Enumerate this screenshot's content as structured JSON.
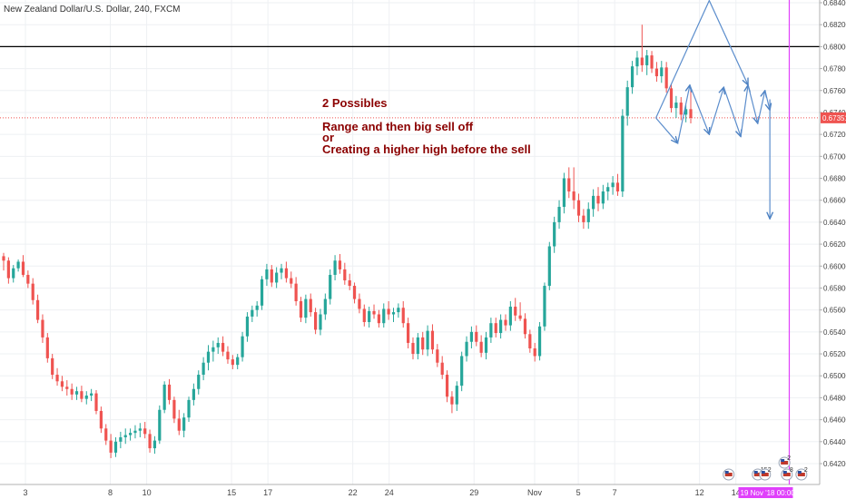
{
  "chart_data": {
    "type": "candlestick",
    "title": "New Zealand Dollar/U.S. Dollar, 240, FXCM",
    "y_range": [
      0.6408,
      0.6843
    ],
    "y_ticks": [
      "0.68400",
      "0.68200",
      "0.68000",
      "0.67800",
      "0.67600",
      "0.67400",
      "0.67200",
      "0.67000",
      "0.66800",
      "0.66600",
      "0.66400",
      "0.66200",
      "0.66000",
      "0.65800",
      "0.65600",
      "0.65400",
      "0.65200",
      "0.65000",
      "0.64800",
      "0.64600",
      "0.64400",
      "0.64200"
    ],
    "x_range": [
      0,
      28
    ],
    "x_ticks": [
      {
        "label": "3",
        "t": 1.0
      },
      {
        "label": "8",
        "t": 4.5
      },
      {
        "label": "10",
        "t": 6.0
      },
      {
        "label": "15",
        "t": 9.5
      },
      {
        "label": "17",
        "t": 11.0
      },
      {
        "label": "22",
        "t": 14.5
      },
      {
        "label": "24",
        "t": 16.0
      },
      {
        "label": "29",
        "t": 19.5
      },
      {
        "label": "Nov",
        "t": 22.0
      },
      {
        "label": "5",
        "t": 23.8
      },
      {
        "label": "7",
        "t": 25.3
      },
      {
        "label": "12",
        "t": 28.8
      },
      {
        "label": "14",
        "t": 30.3
      }
    ],
    "up_color": "#26a69a",
    "down_color": "#ef5350",
    "resistance_level": 0.68,
    "current_price": "0.67351",
    "current_price_value": 0.67351,
    "time_badge": "19 Nov '18 00:00",
    "time_badge_t": 32.5,
    "annotation": {
      "lines": [
        "2 Possibles",
        "",
        "Range and then big sell off",
        "or",
        "Creating a higher high before the sell"
      ],
      "color": "#8b0000"
    },
    "scenario_paths": [
      [
        [
          27.0,
          0.6735
        ],
        [
          29.2,
          0.6842
        ],
        [
          30.8,
          0.6765
        ]
      ],
      [
        [
          27.0,
          0.6735
        ],
        [
          27.9,
          0.6712
        ]
      ],
      [
        [
          27.9,
          0.6712
        ],
        [
          28.4,
          0.6765
        ]
      ],
      [
        [
          28.4,
          0.6765
        ],
        [
          29.2,
          0.672
        ]
      ],
      [
        [
          29.2,
          0.672
        ],
        [
          29.8,
          0.6763
        ]
      ],
      [
        [
          29.8,
          0.6763
        ],
        [
          30.5,
          0.6718
        ]
      ],
      [
        [
          30.5,
          0.6718
        ],
        [
          30.8,
          0.6765
        ]
      ],
      [
        [
          30.8,
          0.6765
        ],
        [
          31.2,
          0.673
        ]
      ],
      [
        [
          31.2,
          0.673
        ],
        [
          31.5,
          0.676
        ]
      ],
      [
        [
          31.5,
          0.676
        ],
        [
          31.7,
          0.6742
        ]
      ]
    ],
    "drop_arrow": [
      [
        31.7,
        0.6752
      ],
      [
        31.7,
        0.6643
      ]
    ],
    "event_badges": [
      {
        "t": 30.0,
        "label": ""
      },
      {
        "t": 31.2,
        "label": "15"
      },
      {
        "t": 31.5,
        "label": "2"
      },
      {
        "t": 32.4,
        "label": "8"
      },
      {
        "t": 32.3,
        "label": "2",
        "upper": true
      },
      {
        "t": 33.0,
        "label": "2"
      }
    ],
    "candles": [
      {
        "o": 0.6609,
        "h": 0.6612,
        "l": 0.6596,
        "c": 0.6605
      },
      {
        "o": 0.6605,
        "h": 0.6608,
        "l": 0.6584,
        "c": 0.6589
      },
      {
        "o": 0.6589,
        "h": 0.6601,
        "l": 0.6585,
        "c": 0.6598
      },
      {
        "o": 0.6598,
        "h": 0.6606,
        "l": 0.6595,
        "c": 0.6604
      },
      {
        "o": 0.6604,
        "h": 0.661,
        "l": 0.659,
        "c": 0.6592
      },
      {
        "o": 0.6592,
        "h": 0.6596,
        "l": 0.658,
        "c": 0.6584
      },
      {
        "o": 0.6584,
        "h": 0.6589,
        "l": 0.6565,
        "c": 0.6569
      },
      {
        "o": 0.6569,
        "h": 0.6574,
        "l": 0.6548,
        "c": 0.6551
      },
      {
        "o": 0.6551,
        "h": 0.6556,
        "l": 0.653,
        "c": 0.6535
      },
      {
        "o": 0.6535,
        "h": 0.6539,
        "l": 0.6512,
        "c": 0.6516
      },
      {
        "o": 0.6516,
        "h": 0.652,
        "l": 0.6497,
        "c": 0.6501
      },
      {
        "o": 0.6501,
        "h": 0.6507,
        "l": 0.6491,
        "c": 0.6495
      },
      {
        "o": 0.6495,
        "h": 0.65,
        "l": 0.6486,
        "c": 0.649
      },
      {
        "o": 0.649,
        "h": 0.6496,
        "l": 0.6482,
        "c": 0.6488
      },
      {
        "o": 0.6488,
        "h": 0.6493,
        "l": 0.6478,
        "c": 0.6483
      },
      {
        "o": 0.6483,
        "h": 0.649,
        "l": 0.6478,
        "c": 0.6486
      },
      {
        "o": 0.6486,
        "h": 0.6491,
        "l": 0.6476,
        "c": 0.6479
      },
      {
        "o": 0.6479,
        "h": 0.6486,
        "l": 0.6474,
        "c": 0.6482
      },
      {
        "o": 0.6482,
        "h": 0.6488,
        "l": 0.6477,
        "c": 0.6484
      },
      {
        "o": 0.6484,
        "h": 0.6487,
        "l": 0.6465,
        "c": 0.6468
      },
      {
        "o": 0.6468,
        "h": 0.6472,
        "l": 0.6448,
        "c": 0.6452
      },
      {
        "o": 0.6452,
        "h": 0.6456,
        "l": 0.6437,
        "c": 0.6441
      },
      {
        "o": 0.6441,
        "h": 0.6447,
        "l": 0.6425,
        "c": 0.643
      },
      {
        "o": 0.643,
        "h": 0.6444,
        "l": 0.6426,
        "c": 0.644
      },
      {
        "o": 0.644,
        "h": 0.6449,
        "l": 0.6434,
        "c": 0.6444
      },
      {
        "o": 0.6444,
        "h": 0.6452,
        "l": 0.6438,
        "c": 0.6446
      },
      {
        "o": 0.6446,
        "h": 0.6452,
        "l": 0.6441,
        "c": 0.6448
      },
      {
        "o": 0.6448,
        "h": 0.6455,
        "l": 0.6443,
        "c": 0.645
      },
      {
        "o": 0.645,
        "h": 0.6457,
        "l": 0.6444,
        "c": 0.6452
      },
      {
        "o": 0.6452,
        "h": 0.6458,
        "l": 0.6443,
        "c": 0.6447
      },
      {
        "o": 0.6447,
        "h": 0.6451,
        "l": 0.643,
        "c": 0.6434
      },
      {
        "o": 0.6434,
        "h": 0.6445,
        "l": 0.6429,
        "c": 0.6441
      },
      {
        "o": 0.6441,
        "h": 0.6473,
        "l": 0.6438,
        "c": 0.6469
      },
      {
        "o": 0.6469,
        "h": 0.6495,
        "l": 0.6466,
        "c": 0.6492
      },
      {
        "o": 0.6492,
        "h": 0.6497,
        "l": 0.6474,
        "c": 0.6478
      },
      {
        "o": 0.6478,
        "h": 0.6481,
        "l": 0.6457,
        "c": 0.6461
      },
      {
        "o": 0.6461,
        "h": 0.6469,
        "l": 0.6446,
        "c": 0.645
      },
      {
        "o": 0.645,
        "h": 0.6466,
        "l": 0.6444,
        "c": 0.6462
      },
      {
        "o": 0.6462,
        "h": 0.6481,
        "l": 0.6458,
        "c": 0.6478
      },
      {
        "o": 0.6478,
        "h": 0.6493,
        "l": 0.6473,
        "c": 0.6488
      },
      {
        "o": 0.6488,
        "h": 0.6505,
        "l": 0.6483,
        "c": 0.6501
      },
      {
        "o": 0.6501,
        "h": 0.6517,
        "l": 0.6496,
        "c": 0.6512
      },
      {
        "o": 0.6512,
        "h": 0.6528,
        "l": 0.6505,
        "c": 0.6522
      },
      {
        "o": 0.6522,
        "h": 0.6532,
        "l": 0.6513,
        "c": 0.6526
      },
      {
        "o": 0.6526,
        "h": 0.6535,
        "l": 0.652,
        "c": 0.653
      },
      {
        "o": 0.653,
        "h": 0.6536,
        "l": 0.6518,
        "c": 0.6522
      },
      {
        "o": 0.6522,
        "h": 0.6527,
        "l": 0.6511,
        "c": 0.6515
      },
      {
        "o": 0.6515,
        "h": 0.6519,
        "l": 0.6506,
        "c": 0.651
      },
      {
        "o": 0.651,
        "h": 0.652,
        "l": 0.6506,
        "c": 0.6517
      },
      {
        "o": 0.6517,
        "h": 0.654,
        "l": 0.6513,
        "c": 0.6536
      },
      {
        "o": 0.6536,
        "h": 0.6558,
        "l": 0.6531,
        "c": 0.6554
      },
      {
        "o": 0.6554,
        "h": 0.6564,
        "l": 0.6549,
        "c": 0.656
      },
      {
        "o": 0.656,
        "h": 0.6568,
        "l": 0.6554,
        "c": 0.6564
      },
      {
        "o": 0.6564,
        "h": 0.6591,
        "l": 0.656,
        "c": 0.6588
      },
      {
        "o": 0.6588,
        "h": 0.6602,
        "l": 0.6582,
        "c": 0.6597
      },
      {
        "o": 0.6597,
        "h": 0.6601,
        "l": 0.6581,
        "c": 0.6585
      },
      {
        "o": 0.6585,
        "h": 0.6599,
        "l": 0.658,
        "c": 0.6594
      },
      {
        "o": 0.6594,
        "h": 0.6602,
        "l": 0.6588,
        "c": 0.6598
      },
      {
        "o": 0.6598,
        "h": 0.6604,
        "l": 0.6585,
        "c": 0.6589
      },
      {
        "o": 0.6589,
        "h": 0.6595,
        "l": 0.658,
        "c": 0.6584
      },
      {
        "o": 0.6584,
        "h": 0.659,
        "l": 0.6564,
        "c": 0.6568
      },
      {
        "o": 0.6568,
        "h": 0.6572,
        "l": 0.6549,
        "c": 0.6553
      },
      {
        "o": 0.6553,
        "h": 0.6574,
        "l": 0.6548,
        "c": 0.657
      },
      {
        "o": 0.657,
        "h": 0.6575,
        "l": 0.6554,
        "c": 0.6558
      },
      {
        "o": 0.6558,
        "h": 0.6562,
        "l": 0.6538,
        "c": 0.6542
      },
      {
        "o": 0.6542,
        "h": 0.6561,
        "l": 0.6537,
        "c": 0.6556
      },
      {
        "o": 0.6556,
        "h": 0.6575,
        "l": 0.6551,
        "c": 0.657
      },
      {
        "o": 0.657,
        "h": 0.6597,
        "l": 0.6565,
        "c": 0.6592
      },
      {
        "o": 0.6592,
        "h": 0.661,
        "l": 0.6587,
        "c": 0.6605
      },
      {
        "o": 0.6605,
        "h": 0.6611,
        "l": 0.6593,
        "c": 0.6597
      },
      {
        "o": 0.6597,
        "h": 0.6603,
        "l": 0.6583,
        "c": 0.6587
      },
      {
        "o": 0.6587,
        "h": 0.6593,
        "l": 0.6578,
        "c": 0.6582
      },
      {
        "o": 0.6582,
        "h": 0.6585,
        "l": 0.6566,
        "c": 0.657
      },
      {
        "o": 0.657,
        "h": 0.6575,
        "l": 0.6557,
        "c": 0.6561
      },
      {
        "o": 0.6561,
        "h": 0.6565,
        "l": 0.6545,
        "c": 0.6549
      },
      {
        "o": 0.6549,
        "h": 0.6563,
        "l": 0.6544,
        "c": 0.6559
      },
      {
        "o": 0.6559,
        "h": 0.6565,
        "l": 0.6552,
        "c": 0.6556
      },
      {
        "o": 0.6556,
        "h": 0.656,
        "l": 0.6544,
        "c": 0.6548
      },
      {
        "o": 0.6548,
        "h": 0.6566,
        "l": 0.6544,
        "c": 0.6561
      },
      {
        "o": 0.6561,
        "h": 0.6568,
        "l": 0.6551,
        "c": 0.6556
      },
      {
        "o": 0.6556,
        "h": 0.6562,
        "l": 0.6549,
        "c": 0.6558
      },
      {
        "o": 0.6558,
        "h": 0.6566,
        "l": 0.6553,
        "c": 0.6562
      },
      {
        "o": 0.6562,
        "h": 0.6568,
        "l": 0.6544,
        "c": 0.6548
      },
      {
        "o": 0.6548,
        "h": 0.6553,
        "l": 0.6525,
        "c": 0.653
      },
      {
        "o": 0.653,
        "h": 0.6535,
        "l": 0.6515,
        "c": 0.652
      },
      {
        "o": 0.652,
        "h": 0.6539,
        "l": 0.6515,
        "c": 0.6535
      },
      {
        "o": 0.6535,
        "h": 0.654,
        "l": 0.6519,
        "c": 0.6524
      },
      {
        "o": 0.6524,
        "h": 0.6546,
        "l": 0.6518,
        "c": 0.6541
      },
      {
        "o": 0.6541,
        "h": 0.6547,
        "l": 0.652,
        "c": 0.6524
      },
      {
        "o": 0.6524,
        "h": 0.6529,
        "l": 0.6508,
        "c": 0.6512
      },
      {
        "o": 0.6512,
        "h": 0.6518,
        "l": 0.6497,
        "c": 0.6501
      },
      {
        "o": 0.6501,
        "h": 0.6505,
        "l": 0.6476,
        "c": 0.6481
      },
      {
        "o": 0.6481,
        "h": 0.6486,
        "l": 0.6466,
        "c": 0.6474
      },
      {
        "o": 0.6474,
        "h": 0.6495,
        "l": 0.6468,
        "c": 0.6491
      },
      {
        "o": 0.6491,
        "h": 0.6522,
        "l": 0.6486,
        "c": 0.6518
      },
      {
        "o": 0.6518,
        "h": 0.6536,
        "l": 0.6513,
        "c": 0.6531
      },
      {
        "o": 0.6531,
        "h": 0.6545,
        "l": 0.6525,
        "c": 0.654
      },
      {
        "o": 0.654,
        "h": 0.6546,
        "l": 0.6527,
        "c": 0.6531
      },
      {
        "o": 0.6531,
        "h": 0.6537,
        "l": 0.6517,
        "c": 0.6521
      },
      {
        "o": 0.6521,
        "h": 0.654,
        "l": 0.6515,
        "c": 0.6535
      },
      {
        "o": 0.6535,
        "h": 0.6553,
        "l": 0.653,
        "c": 0.6548
      },
      {
        "o": 0.6548,
        "h": 0.6553,
        "l": 0.6535,
        "c": 0.6539
      },
      {
        "o": 0.6539,
        "h": 0.6556,
        "l": 0.6534,
        "c": 0.6551
      },
      {
        "o": 0.6551,
        "h": 0.6556,
        "l": 0.6541,
        "c": 0.6546
      },
      {
        "o": 0.6546,
        "h": 0.6568,
        "l": 0.6541,
        "c": 0.6563
      },
      {
        "o": 0.6563,
        "h": 0.6571,
        "l": 0.655,
        "c": 0.6555
      },
      {
        "o": 0.6555,
        "h": 0.6567,
        "l": 0.655,
        "c": 0.6552
      },
      {
        "o": 0.6552,
        "h": 0.6557,
        "l": 0.6534,
        "c": 0.6538
      },
      {
        "o": 0.6538,
        "h": 0.6542,
        "l": 0.6521,
        "c": 0.6525
      },
      {
        "o": 0.6525,
        "h": 0.653,
        "l": 0.6513,
        "c": 0.6518
      },
      {
        "o": 0.6518,
        "h": 0.6549,
        "l": 0.6514,
        "c": 0.6545
      },
      {
        "o": 0.6545,
        "h": 0.6585,
        "l": 0.6541,
        "c": 0.6582
      },
      {
        "o": 0.6582,
        "h": 0.6622,
        "l": 0.6578,
        "c": 0.6618
      },
      {
        "o": 0.6618,
        "h": 0.6645,
        "l": 0.6612,
        "c": 0.664
      },
      {
        "o": 0.664,
        "h": 0.666,
        "l": 0.6634,
        "c": 0.6654
      },
      {
        "o": 0.6654,
        "h": 0.6685,
        "l": 0.6648,
        "c": 0.668
      },
      {
        "o": 0.668,
        "h": 0.669,
        "l": 0.6662,
        "c": 0.6668
      },
      {
        "o": 0.6668,
        "h": 0.669,
        "l": 0.6652,
        "c": 0.666
      },
      {
        "o": 0.666,
        "h": 0.6666,
        "l": 0.664,
        "c": 0.6646
      },
      {
        "o": 0.6646,
        "h": 0.6652,
        "l": 0.6634,
        "c": 0.664
      },
      {
        "o": 0.664,
        "h": 0.6658,
        "l": 0.6634,
        "c": 0.6652
      },
      {
        "o": 0.6652,
        "h": 0.667,
        "l": 0.6645,
        "c": 0.6664
      },
      {
        "o": 0.6664,
        "h": 0.6672,
        "l": 0.665,
        "c": 0.6657
      },
      {
        "o": 0.6657,
        "h": 0.6674,
        "l": 0.6652,
        "c": 0.6668
      },
      {
        "o": 0.6668,
        "h": 0.6676,
        "l": 0.666,
        "c": 0.6672
      },
      {
        "o": 0.6672,
        "h": 0.6682,
        "l": 0.6665,
        "c": 0.6676
      },
      {
        "o": 0.6676,
        "h": 0.6684,
        "l": 0.6664,
        "c": 0.6668
      },
      {
        "o": 0.6668,
        "h": 0.6743,
        "l": 0.6663,
        "c": 0.6737
      },
      {
        "o": 0.6737,
        "h": 0.6769,
        "l": 0.6728,
        "c": 0.6763
      },
      {
        "o": 0.6763,
        "h": 0.6787,
        "l": 0.6757,
        "c": 0.6782
      },
      {
        "o": 0.6782,
        "h": 0.6796,
        "l": 0.6774,
        "c": 0.679
      },
      {
        "o": 0.679,
        "h": 0.682,
        "l": 0.6777,
        "c": 0.6783
      },
      {
        "o": 0.6783,
        "h": 0.6797,
        "l": 0.6774,
        "c": 0.6792
      },
      {
        "o": 0.6792,
        "h": 0.6796,
        "l": 0.6776,
        "c": 0.678
      },
      {
        "o": 0.678,
        "h": 0.6786,
        "l": 0.6768,
        "c": 0.6773
      },
      {
        "o": 0.6773,
        "h": 0.6787,
        "l": 0.6767,
        "c": 0.6781
      },
      {
        "o": 0.6781,
        "h": 0.6786,
        "l": 0.6758,
        "c": 0.6762
      },
      {
        "o": 0.6762,
        "h": 0.6766,
        "l": 0.674,
        "c": 0.6744
      },
      {
        "o": 0.6744,
        "h": 0.6755,
        "l": 0.6735,
        "c": 0.6749
      },
      {
        "o": 0.6749,
        "h": 0.6754,
        "l": 0.6733,
        "c": 0.6738
      },
      {
        "o": 0.6738,
        "h": 0.6747,
        "l": 0.6731,
        "c": 0.6743
      },
      {
        "o": 0.6743,
        "h": 0.6762,
        "l": 0.673,
        "c": 0.6735
      }
    ]
  }
}
